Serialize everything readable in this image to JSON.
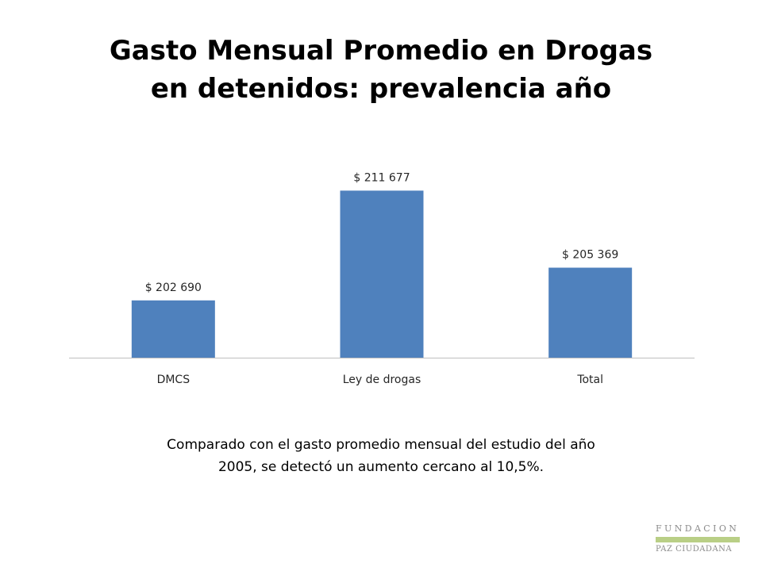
{
  "slide": {
    "title_line1": "Gasto Mensual Promedio en Drogas",
    "title_line2": "en detenidos: prevalencia año",
    "caption_line1": "Comparado con el gasto promedio mensual del estudio del año",
    "caption_line2": "2005, se detectó un aumento cercano al 10,5%."
  },
  "logo": {
    "line1": "FUNDACION",
    "line2": "PAZ CIUDADANA",
    "accent_color": "#b9cf86"
  },
  "chart_data": {
    "type": "bar",
    "categories": [
      "DMCS",
      "Ley de drogas",
      "Total"
    ],
    "values": [
      202690,
      211677,
      205369
    ],
    "data_labels": [
      "$ 202 690",
      "$ 211 677",
      "$ 205 369"
    ],
    "title": "",
    "xlabel": "",
    "ylabel": "",
    "ylim": [
      198000,
      213000
    ],
    "bar_color": "#4f81bd",
    "grid": false,
    "legend": "none"
  }
}
